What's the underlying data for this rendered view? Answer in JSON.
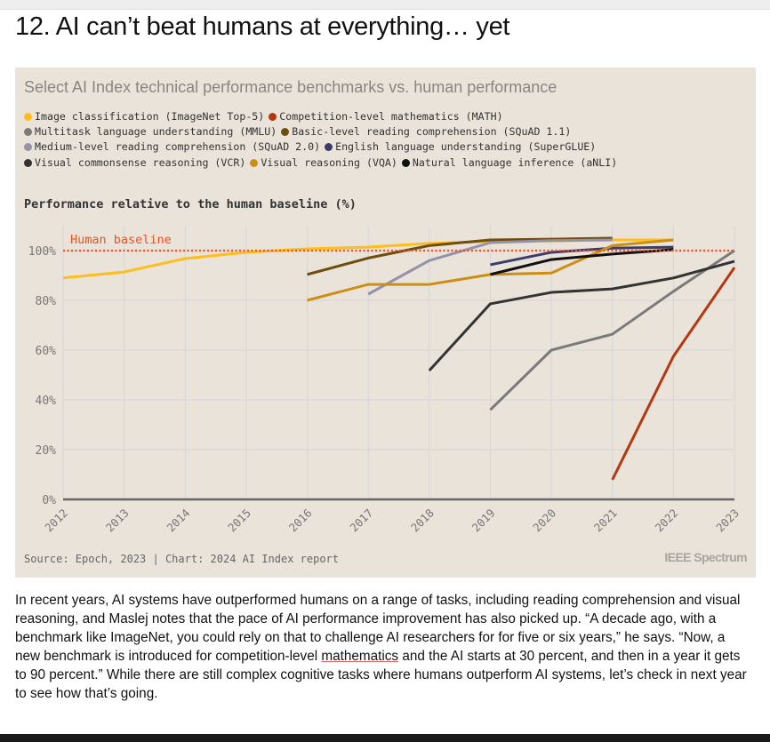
{
  "title": "12. AI can’t beat humans at everything… yet",
  "chart_data": {
    "type": "line",
    "title": "Select AI Index technical performance benchmarks vs. human performance",
    "ylabel": "Performance relative to the human baseline (%)",
    "xlabel": "",
    "x": [
      2012,
      2013,
      2014,
      2015,
      2016,
      2017,
      2018,
      2019,
      2020,
      2021,
      2022,
      2023
    ],
    "ylim": [
      0,
      110
    ],
    "yticks": [
      {
        "v": 0,
        "label": "0%"
      },
      {
        "v": 20,
        "label": "20%"
      },
      {
        "v": 40,
        "label": "40%"
      },
      {
        "v": 60,
        "label": "60%"
      },
      {
        "v": 80,
        "label": "80%"
      },
      {
        "v": 100,
        "label": "100%"
      }
    ],
    "grid": true,
    "legend_placement": "top",
    "baseline": {
      "value": 100,
      "label": "Human baseline",
      "color": "#ff4a14"
    },
    "series": [
      {
        "name": "Image classification (ImageNet Top-5)",
        "color": "#ffbe1a",
        "points": [
          [
            2012,
            89
          ],
          [
            2013,
            91.4
          ],
          [
            2014,
            96.8
          ],
          [
            2015,
            99.3
          ],
          [
            2016,
            100.7
          ],
          [
            2017,
            101.4
          ],
          [
            2018,
            102.9
          ],
          [
            2019,
            103.6
          ],
          [
            2020,
            103.9
          ],
          [
            2021,
            104.3
          ],
          [
            2022,
            104.3
          ]
        ]
      },
      {
        "name": "Competition-level mathematics (MATH)",
        "color": "#b5360f",
        "points": [
          [
            2021,
            7.9
          ],
          [
            2022,
            57.5
          ],
          [
            2023,
            93.2
          ]
        ]
      },
      {
        "name": "Multitask language understanding (MMLU)",
        "color": "#7a7a7a",
        "points": [
          [
            2019,
            36
          ],
          [
            2020,
            60
          ],
          [
            2021,
            66.4
          ],
          [
            2022,
            83.6
          ],
          [
            2023,
            100
          ]
        ]
      },
      {
        "name": "Basic-level reading comprehension (SQuAD 1.1)",
        "color": "#6e4d0e",
        "points": [
          [
            2016,
            90.4
          ],
          [
            2017,
            97
          ],
          [
            2018,
            102
          ],
          [
            2019,
            104.3
          ],
          [
            2020,
            104.6
          ],
          [
            2021,
            105
          ]
        ]
      },
      {
        "name": "Medium-level reading comprehension (SQuAD 2.0)",
        "color": "#9392aa",
        "points": [
          [
            2017,
            82.5
          ],
          [
            2018,
            96
          ],
          [
            2019,
            103.2
          ],
          [
            2020,
            104
          ],
          [
            2021,
            104.3
          ]
        ]
      },
      {
        "name": "English language understanding (SuperGLUE)",
        "color": "#3c3c6c",
        "points": [
          [
            2019,
            94.3
          ],
          [
            2020,
            99.3
          ],
          [
            2021,
            101
          ],
          [
            2022,
            101.4
          ]
        ]
      },
      {
        "name": "Visual commonsense reasoning (VCR)",
        "color": "#333333",
        "points": [
          [
            2018,
            51.8
          ],
          [
            2019,
            78.6
          ],
          [
            2020,
            83.2
          ],
          [
            2021,
            84.6
          ],
          [
            2022,
            89
          ],
          [
            2023,
            95.7
          ]
        ]
      },
      {
        "name": "Visual reasoning (VQA)",
        "color": "#cc8f14",
        "points": [
          [
            2016,
            80
          ],
          [
            2017,
            86.4
          ],
          [
            2018,
            86.4
          ],
          [
            2019,
            90.4
          ],
          [
            2020,
            91
          ],
          [
            2021,
            102
          ],
          [
            2022,
            104.3
          ]
        ]
      },
      {
        "name": "Natural language inference (aNLI)",
        "color": "#111111",
        "points": [
          [
            2019,
            90.4
          ],
          [
            2020,
            96.4
          ],
          [
            2021,
            98.6
          ],
          [
            2022,
            100.4
          ]
        ]
      }
    ],
    "source": "Source: Epoch, 2023 | Chart: 2024 AI Index report"
  },
  "logo": "IEEE Spectrum",
  "body": {
    "before": "In recent years, AI systems have outperformed humans on a range of tasks, including reading comprehension and visual reasoning, and Maslej notes that the pace of AI performance improvement has also picked up. “A decade ago, with a benchmark like ImageNet, you could rely on that to challenge AI researchers for for five or six years,” he says. “Now, a new benchmark is introduced for competition-level ",
    "link": "mathematics",
    "after": " and the AI starts at 30 percent, and then in a year it gets to 90 percent.” While there are still complex cognitive tasks where humans outperform AI systems, let’s check in next year to see how that’s going."
  }
}
